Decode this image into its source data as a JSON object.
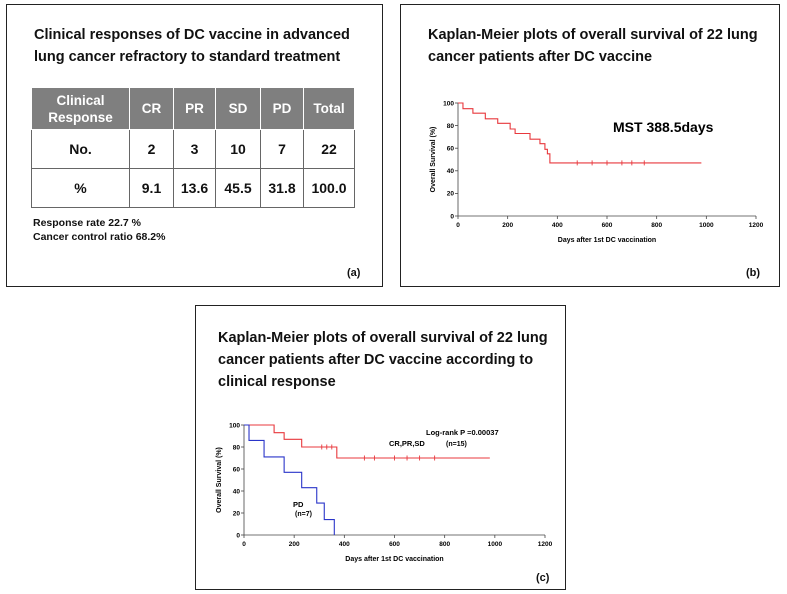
{
  "panel_a": {
    "title_line1": "Clinical responses of DC vaccine in  advanced",
    "title_line2": "lung cancer refractory to standard treatment",
    "table": {
      "header": [
        "Clinical Response",
        "CR",
        "PR",
        "SD",
        "PD",
        "Total"
      ],
      "rows": [
        [
          "No.",
          "2",
          "3",
          "10",
          "7",
          "22"
        ],
        [
          "%",
          "9.1",
          "13.6",
          "45.5",
          "31.8",
          "100.0"
        ]
      ]
    },
    "response_rate": "Response rate  22.7 %",
    "control_ratio": "Cancer control ratio 68.2%",
    "label": "(a)"
  },
  "panel_b": {
    "title_line1": "Kaplan-Meier  plots of overall survival of 22 lung",
    "title_line2": "cancer patients after DC vaccine",
    "label": "(b)"
  },
  "panel_c": {
    "title_line1": "Kaplan-Meier  plots of overall survival of 22 lung",
    "title_line2": "cancer patients after DC vaccine according to",
    "title_line3": "clinical response",
    "label": "(c)"
  },
  "colors": {
    "red": "#e8383d",
    "blue": "#2a35c9",
    "header_gray": "#7f7f7f"
  },
  "chart_data": [
    {
      "type": "line",
      "subtype": "kaplan-meier",
      "xlabel": "Days after 1st DC vaccination",
      "ylabel": "Overall Survival (%)",
      "xlim": [
        0,
        1200
      ],
      "ylim": [
        0,
        100
      ],
      "xticks": [
        0,
        200,
        400,
        600,
        800,
        1000,
        1200
      ],
      "yticks": [
        0,
        20,
        40,
        60,
        80,
        100
      ],
      "annotation": "MST   388.5days",
      "series": [
        {
          "color": "#e8383d",
          "steps": [
            [
              0,
              100
            ],
            [
              20,
              95
            ],
            [
              60,
              91
            ],
            [
              110,
              86
            ],
            [
              160,
              82
            ],
            [
              210,
              77
            ],
            [
              230,
              73
            ],
            [
              290,
              68
            ],
            [
              330,
              64
            ],
            [
              350,
              59
            ],
            [
              360,
              55
            ],
            [
              370,
              47
            ],
            [
              980,
              47
            ]
          ],
          "censored": [
            480,
            540,
            600,
            660,
            700,
            750
          ]
        }
      ]
    },
    {
      "type": "line",
      "subtype": "kaplan-meier",
      "xlabel": "Days after 1st  DC vaccination",
      "ylabel": "Overall Survival (%)",
      "xlim": [
        0,
        1200
      ],
      "ylim": [
        0,
        100
      ],
      "xticks": [
        0,
        200,
        400,
        600,
        800,
        1000,
        1200
      ],
      "yticks": [
        0,
        20,
        40,
        60,
        80,
        100
      ],
      "annotation": "Log-rank P =0.00037",
      "series": [
        {
          "name": "CR,PR,SD",
          "n": "(n=15)",
          "color": "#e8383d",
          "steps": [
            [
              0,
              100
            ],
            [
              120,
              93
            ],
            [
              160,
              87
            ],
            [
              230,
              80
            ],
            [
              370,
              70
            ],
            [
              980,
              70
            ]
          ],
          "censored": [
            310,
            330,
            350,
            480,
            520,
            600,
            650,
            700,
            760
          ]
        },
        {
          "name": "PD",
          "n": "(n=7)",
          "color": "#2a35c9",
          "steps": [
            [
              0,
              100
            ],
            [
              20,
              86
            ],
            [
              80,
              71
            ],
            [
              160,
              57
            ],
            [
              230,
              43
            ],
            [
              290,
              29
            ],
            [
              320,
              14
            ],
            [
              360,
              0
            ]
          ],
          "censored": []
        }
      ]
    }
  ]
}
